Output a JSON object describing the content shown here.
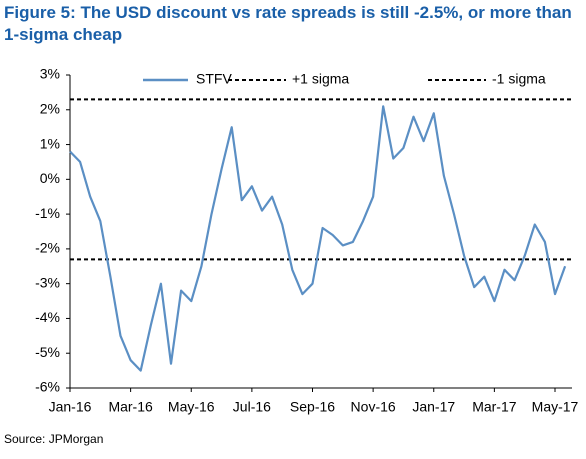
{
  "chart_data": {
    "type": "line",
    "title": "Figure 5: The USD discount vs rate spreads is still -2.5%, or more than 1-sigma cheap",
    "source": "Source: JPMorgan",
    "categories": [
      "Jan-16",
      null,
      null,
      null,
      null,
      null,
      "Mar-16",
      null,
      null,
      null,
      null,
      null,
      "May-16",
      null,
      null,
      null,
      null,
      null,
      "Jul-16",
      null,
      null,
      null,
      null,
      null,
      "Sep-16",
      null,
      null,
      null,
      null,
      null,
      "Nov-16",
      null,
      null,
      null,
      null,
      null,
      "Jan-17",
      null,
      null,
      null,
      null,
      null,
      "Mar-17",
      null,
      null,
      null,
      null,
      null,
      "May-17",
      null
    ],
    "series": [
      {
        "name": "STFV",
        "color": "#5b8fc4",
        "values": [
          0.8,
          0.5,
          -0.5,
          -1.2,
          -2.8,
          -4.5,
          -5.2,
          -5.5,
          -4.2,
          -3.0,
          -5.3,
          -3.2,
          -3.5,
          -2.5,
          -1.0,
          0.3,
          1.5,
          -0.6,
          -0.2,
          -0.9,
          -0.5,
          -1.3,
          -2.6,
          -3.3,
          -3.0,
          -1.4,
          -1.6,
          -1.9,
          -1.8,
          -1.2,
          -0.5,
          2.1,
          0.6,
          0.9,
          1.8,
          1.1,
          1.9,
          0.1,
          -1.0,
          -2.2,
          -3.1,
          -2.8,
          -3.5,
          -2.6,
          -2.9,
          -2.2,
          -1.3,
          -1.8,
          -3.3,
          -2.5
        ]
      }
    ],
    "reference_lines": [
      {
        "name": "+1 sigma",
        "value": 2.3,
        "color": "#000000"
      },
      {
        "name": "-1 sigma",
        "value": -2.3,
        "color": "#000000"
      }
    ],
    "ylim": [
      -6,
      3
    ],
    "yticks": [
      {
        "value": -6,
        "label": "-6%"
      },
      {
        "value": -5,
        "label": "-5%"
      },
      {
        "value": -4,
        "label": "-4%"
      },
      {
        "value": -3,
        "label": "-3%"
      },
      {
        "value": -2,
        "label": "-2%"
      },
      {
        "value": -1,
        "label": "-1%"
      },
      {
        "value": 0,
        "label": "0%"
      },
      {
        "value": 1,
        "label": "1%"
      },
      {
        "value": 2,
        "label": "2%"
      },
      {
        "value": 3,
        "label": "3%"
      }
    ],
    "grid": false
  }
}
